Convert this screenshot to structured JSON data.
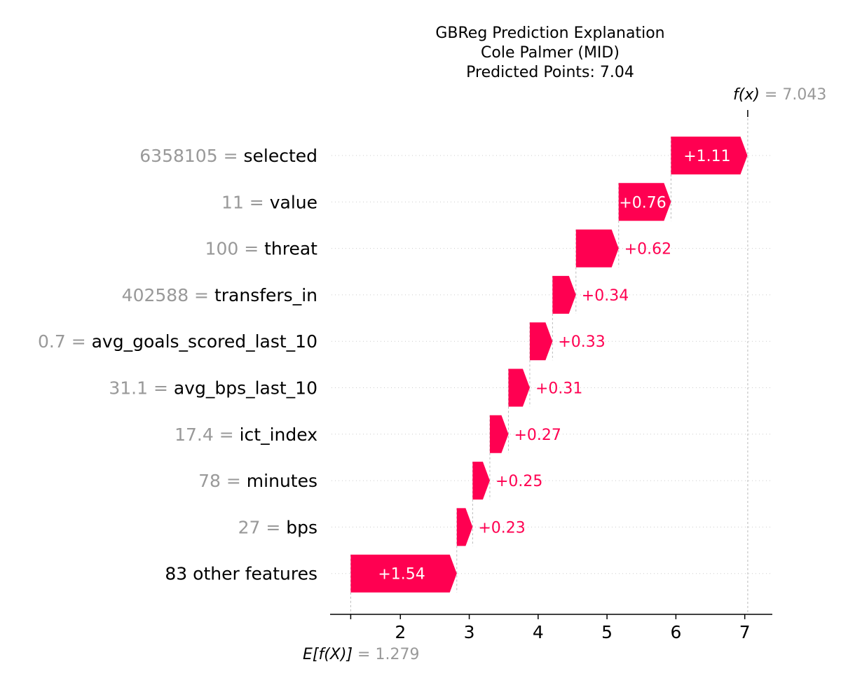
{
  "title": {
    "line1": "GBReg Prediction Explanation",
    "line2": "Cole Palmer (MID)",
    "line3": "Predicted Points: 7.04"
  },
  "fx": {
    "prefix_text": "f(x)",
    "equals": " = ",
    "value_text": "7.043",
    "value": 7.043
  },
  "efx": {
    "prefix_text": "E[f(X)]",
    "equals": " = ",
    "value_text": "1.279",
    "value": 1.279
  },
  "colors": {
    "positive": "#ff0051",
    "value_text": "#999999",
    "grid": "#cccccc"
  },
  "chart_data": {
    "type": "waterfall",
    "base_value": 1.279,
    "output_value": 7.043,
    "xlim": [
      1.0,
      7.4
    ],
    "xticks": [
      2,
      3,
      4,
      5,
      6,
      7
    ],
    "features": [
      {
        "value_text": "6358105",
        "name": "selected",
        "contribution": 1.11,
        "label": "+1.11"
      },
      {
        "value_text": "11",
        "name": "value",
        "contribution": 0.76,
        "label": "+0.76"
      },
      {
        "value_text": "100",
        "name": "threat",
        "contribution": 0.62,
        "label": "+0.62"
      },
      {
        "value_text": "402588",
        "name": "transfers_in",
        "contribution": 0.34,
        "label": "+0.34"
      },
      {
        "value_text": "0.7",
        "name": "avg_goals_scored_last_10",
        "contribution": 0.33,
        "label": "+0.33"
      },
      {
        "value_text": "31.1",
        "name": "avg_bps_last_10",
        "contribution": 0.31,
        "label": "+0.31"
      },
      {
        "value_text": "17.4",
        "name": "ict_index",
        "contribution": 0.27,
        "label": "+0.27"
      },
      {
        "value_text": "78",
        "name": "minutes",
        "contribution": 0.25,
        "label": "+0.25"
      },
      {
        "value_text": "27",
        "name": "bps",
        "contribution": 0.23,
        "label": "+0.23"
      },
      {
        "value_text": "",
        "name": "83 other features",
        "contribution": 1.54,
        "label": "+1.54"
      }
    ]
  }
}
